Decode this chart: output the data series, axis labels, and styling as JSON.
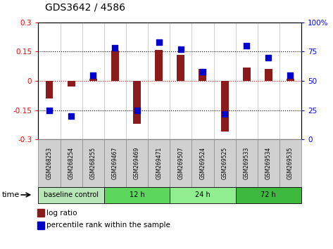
{
  "title": "GDS3642 / 4586",
  "categories": [
    "GSM268253",
    "GSM268254",
    "GSM268255",
    "GSM269467",
    "GSM269469",
    "GSM269471",
    "GSM269507",
    "GSM269524",
    "GSM269525",
    "GSM269533",
    "GSM269534",
    "GSM269535"
  ],
  "log_ratio": [
    -0.09,
    -0.03,
    0.01,
    0.155,
    -0.22,
    0.16,
    0.135,
    0.06,
    -0.26,
    0.07,
    0.06,
    0.01
  ],
  "percentile_rank": [
    25,
    20,
    55,
    78,
    25,
    83,
    77,
    58,
    22,
    80,
    70,
    55
  ],
  "bar_color": "#8B1A1A",
  "dot_color": "#0000CD",
  "ylim_left": [
    -0.3,
    0.3
  ],
  "ylim_right": [
    0,
    100
  ],
  "yticks_left": [
    -0.3,
    -0.15,
    0,
    0.15,
    0.3
  ],
  "yticks_right": [
    0,
    25,
    50,
    75,
    100
  ],
  "groups": [
    {
      "label": "baseline control",
      "start": 0,
      "end": 3,
      "color": "#b8e6b8"
    },
    {
      "label": "12 h",
      "start": 3,
      "end": 6,
      "color": "#5cd65c"
    },
    {
      "label": "24 h",
      "start": 6,
      "end": 9,
      "color": "#90EE90"
    },
    {
      "label": "72 h",
      "start": 9,
      "end": 12,
      "color": "#3dba3d"
    }
  ],
  "legend_items": [
    "log ratio",
    "percentile rank within the sample"
  ],
  "legend_colors": [
    "#8B1A1A",
    "#0000CD"
  ],
  "bar_width": 0.35,
  "dot_size": 30
}
